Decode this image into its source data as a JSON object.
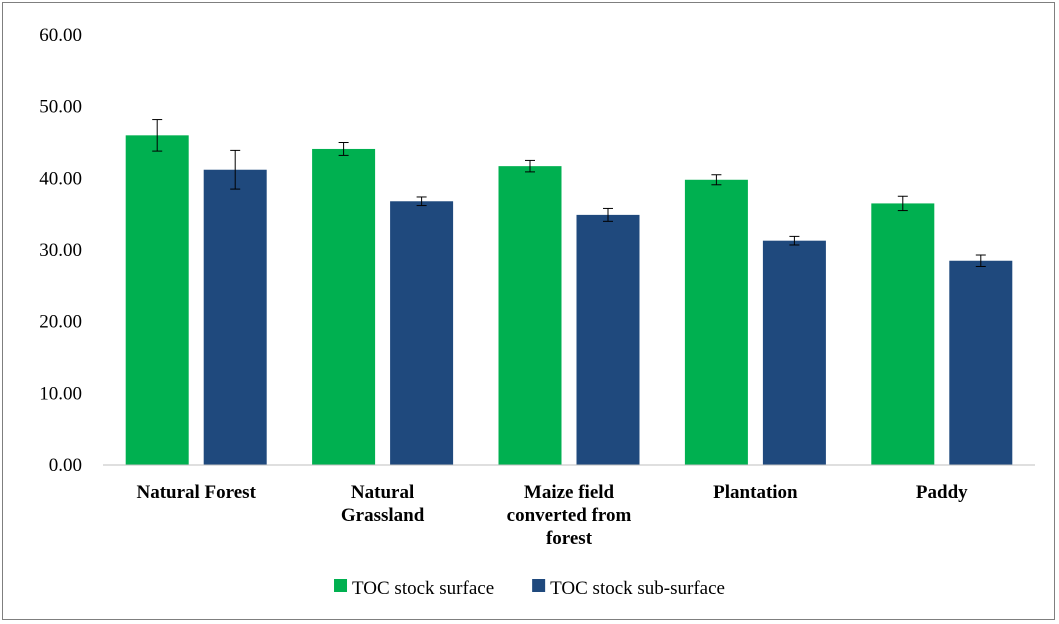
{
  "chart_data": {
    "type": "bar",
    "categories": [
      [
        "Natural Forest"
      ],
      [
        "Natural",
        "Grassland"
      ],
      [
        "Maize field",
        "converted from",
        "forest"
      ],
      [
        "Plantation"
      ],
      [
        "Paddy"
      ]
    ],
    "series": [
      {
        "name": "TOC stock surface",
        "color": "#00b050",
        "values": [
          46.0,
          44.1,
          41.7,
          39.8,
          36.5
        ],
        "errors": [
          2.2,
          0.9,
          0.8,
          0.7,
          1.0
        ]
      },
      {
        "name": "TOC stock sub-surface",
        "color": "#1f497d",
        "values": [
          41.2,
          36.8,
          34.9,
          31.3,
          28.5
        ],
        "errors": [
          2.7,
          0.6,
          0.9,
          0.6,
          0.8
        ]
      }
    ],
    "ylim": [
      0,
      60
    ],
    "yticks": [
      "0.00",
      "10.00",
      "20.00",
      "30.00",
      "40.00",
      "50.00",
      "60.00"
    ],
    "title": "",
    "xlabel": "",
    "ylabel": "",
    "grid": false,
    "legend_position": "bottom"
  }
}
